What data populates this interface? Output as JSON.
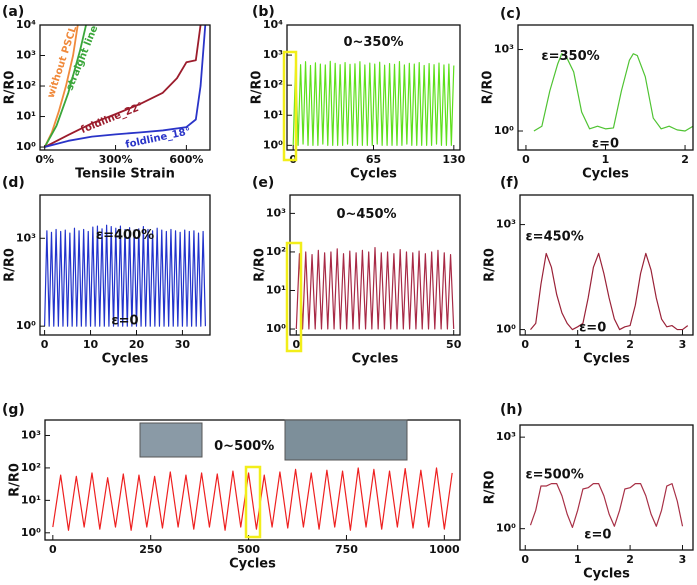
{
  "chart_data": [
    {
      "type": "line",
      "label": "(a)",
      "xlabel": "Tensile Strain",
      "ylabel": "R/R0",
      "log_y": true,
      "xlim": [
        -20,
        700
      ],
      "ylim": [
        0.8,
        10000
      ],
      "xticks": [
        {
          "value": 0,
          "label": "0%"
        },
        {
          "value": 300,
          "label": "300%"
        },
        {
          "value": 600,
          "label": "600%"
        }
      ],
      "yticks": [
        {
          "value": 1,
          "label": "10⁰"
        },
        {
          "value": 10,
          "label": "10¹"
        },
        {
          "value": 100,
          "label": "10²"
        },
        {
          "value": 1000,
          "label": "10³"
        },
        {
          "value": 10000,
          "label": "10⁴"
        }
      ],
      "annotations": [],
      "series": [
        {
          "name": "without PSCL",
          "color": "#f08a3c",
          "x": [
            0,
            30,
            60,
            90,
            120,
            140
          ],
          "values": [
            1,
            3,
            15,
            100,
            1000,
            10000
          ]
        },
        {
          "name": "straight line",
          "color": "#3aa63a",
          "x": [
            0,
            50,
            100,
            150,
            175
          ],
          "values": [
            1,
            5,
            60,
            1500,
            10000
          ]
        },
        {
          "name": "foldline_22°",
          "color": "#9b1c2c",
          "x": [
            0,
            100,
            200,
            300,
            400,
            500,
            560,
            600,
            640,
            660
          ],
          "values": [
            1,
            2.5,
            6,
            12,
            25,
            60,
            180,
            600,
            700,
            10000
          ]
        },
        {
          "name": "foldline_18°",
          "color": "#2a34c8",
          "x": [
            0,
            100,
            200,
            300,
            400,
            500,
            600,
            640,
            660,
            680
          ],
          "values": [
            1,
            1.6,
            2.2,
            2.6,
            3,
            3.5,
            4.5,
            8,
            100,
            10000
          ]
        }
      ]
    },
    {
      "type": "line",
      "label": "(b)",
      "xlabel": "Cycles",
      "ylabel": "R/R0",
      "log_y": true,
      "xlim": [
        -5,
        135
      ],
      "ylim": [
        0.7,
        10000
      ],
      "xticks": [
        0,
        65,
        130
      ],
      "yticks": [
        {
          "value": 1,
          "label": "10⁰"
        },
        {
          "value": 10,
          "label": "10¹"
        },
        {
          "value": 100,
          "label": "10²"
        },
        {
          "value": 1000,
          "label": "10³"
        },
        {
          "value": 10000,
          "label": "10⁴"
        }
      ],
      "annotations": [
        "0~350%"
      ],
      "series": [
        {
          "color": "#5ee01c",
          "x": [
            0,
            2,
            4,
            6,
            8,
            10,
            12,
            14,
            16,
            18,
            20,
            22,
            24,
            26,
            28,
            30,
            32,
            34,
            36,
            38,
            40,
            42,
            44,
            46,
            48,
            50,
            52,
            54,
            56,
            58,
            60,
            62,
            64,
            66,
            68,
            70,
            72,
            74,
            76,
            78,
            80,
            82,
            84,
            86,
            88,
            90,
            92,
            94,
            96,
            98,
            100,
            102,
            104,
            106,
            108,
            110,
            112,
            114,
            116,
            118,
            120,
            122,
            124,
            126,
            128,
            130
          ],
          "values": [
            1,
            520,
            1,
            480,
            1.1,
            600,
            1,
            450,
            1,
            550,
            1,
            500,
            1.1,
            470,
            1,
            620,
            1,
            530,
            1,
            480,
            1,
            560,
            1.1,
            490,
            1,
            510,
            1,
            600,
            1,
            470,
            1,
            540,
            1,
            500,
            1.1,
            580,
            1,
            460,
            1,
            520,
            1,
            490,
            1,
            610,
            1,
            470,
            1.1,
            530,
            1,
            500,
            1,
            560,
            1,
            450,
            1,
            520,
            1,
            480,
            1.1,
            540,
            1,
            470,
            1,
            500,
            1,
            450
          ]
        }
      ]
    },
    {
      "type": "line",
      "label": "(c)",
      "xlabel": "Cycles",
      "ylabel": "R/R0",
      "log_y": true,
      "xlim": [
        -0.1,
        2.1
      ],
      "ylim": [
        0.2,
        8000
      ],
      "xticks": [
        0,
        1,
        2
      ],
      "yticks": [
        {
          "value": 1,
          "label": "10⁰"
        },
        {
          "value": 1000,
          "label": "10³"
        }
      ],
      "annotations": [
        "ε=350%",
        "ε=0"
      ],
      "series": [
        {
          "color": "#4fc332",
          "x": [
            0.1,
            0.2,
            0.3,
            0.4,
            0.45,
            0.5,
            0.6,
            0.7,
            0.8,
            0.9,
            1.0,
            1.1,
            1.2,
            1.3,
            1.35,
            1.4,
            1.5,
            1.6,
            1.7,
            1.8,
            1.9,
            2.0,
            2.1
          ],
          "values": [
            1,
            1.5,
            30,
            300,
            700,
            600,
            150,
            5,
            1.2,
            1.5,
            1.2,
            1.3,
            30,
            400,
            700,
            600,
            100,
            3,
            1.2,
            1.5,
            1.1,
            1,
            1.5
          ]
        }
      ]
    },
    {
      "type": "line",
      "label": "(d)",
      "xlabel": "Cycles",
      "ylabel": "R/R0",
      "log_y": true,
      "xlim": [
        -1,
        36
      ],
      "ylim": [
        0.5,
        30000
      ],
      "xticks": [
        0,
        10,
        20,
        30
      ],
      "yticks": [
        {
          "value": 1,
          "label": "10⁰"
        },
        {
          "value": 1000,
          "label": "10³"
        }
      ],
      "annotations": [
        "ε=400%",
        "ε=0"
      ],
      "series": [
        {
          "color": "#2233cc",
          "x": [
            0,
            0.5,
            1,
            1.5,
            2,
            2.5,
            3,
            3.5,
            4,
            4.5,
            5,
            5.5,
            6,
            6.5,
            7,
            7.5,
            8,
            8.5,
            9,
            9.5,
            10,
            10.5,
            11,
            11.5,
            12,
            12.5,
            13,
            13.5,
            14,
            14.5,
            15,
            15.5,
            16,
            16.5,
            17,
            17.5,
            18,
            18.5,
            19,
            19.5,
            20,
            20.5,
            21,
            21.5,
            22,
            22.5,
            23,
            23.5,
            24,
            24.5,
            25,
            25.5,
            26,
            26.5,
            27,
            27.5,
            28,
            28.5,
            29,
            29.5,
            30,
            30.5,
            31,
            31.5,
            32,
            32.5,
            33,
            33.5,
            34,
            34.5,
            35
          ],
          "values": [
            1,
            1800,
            1,
            1600,
            1,
            2000,
            1,
            1700,
            1,
            1900,
            1,
            1500,
            1,
            2200,
            1,
            1800,
            1,
            2000,
            1,
            1700,
            1,
            2400,
            1,
            2600,
            1,
            2100,
            1,
            2800,
            1,
            2500,
            1,
            2200,
            1,
            2600,
            1,
            2000,
            1,
            2300,
            1,
            1900,
            1,
            2100,
            1,
            2500,
            1,
            2000,
            1,
            1800,
            1,
            2200,
            1,
            1900,
            1,
            1700,
            1,
            2000,
            1,
            1800,
            1,
            1600,
            1,
            1900,
            1,
            1700,
            1,
            1800,
            1,
            1500,
            1,
            1700,
            1
          ]
        }
      ]
    },
    {
      "type": "line",
      "label": "(e)",
      "xlabel": "Cycles",
      "ylabel": "R/R0",
      "log_y": true,
      "xlim": [
        -2,
        52
      ],
      "ylim": [
        0.7,
        3000
      ],
      "xticks": [
        0,
        50
      ],
      "yticks": [
        {
          "value": 1,
          "label": "10⁰"
        },
        {
          "value": 10,
          "label": "10¹"
        },
        {
          "value": 100,
          "label": "10²"
        },
        {
          "value": 1000,
          "label": "10³"
        }
      ],
      "annotations": [
        "0~450%"
      ],
      "series": [
        {
          "color": "#a82a46",
          "x": [
            0,
            1,
            2,
            3,
            4,
            5,
            6,
            7,
            8,
            9,
            10,
            11,
            12,
            13,
            14,
            15,
            16,
            17,
            18,
            19,
            20,
            21,
            22,
            23,
            24,
            25,
            26,
            27,
            28,
            29,
            30,
            31,
            32,
            33,
            34,
            35,
            36,
            37,
            38,
            39,
            40,
            41,
            42,
            43,
            44,
            45,
            46,
            47,
            48,
            49,
            50
          ],
          "values": [
            1,
            90,
            1,
            100,
            1,
            85,
            1,
            110,
            1,
            95,
            1,
            100,
            1,
            120,
            1,
            90,
            1,
            105,
            1,
            95,
            1,
            110,
            1,
            100,
            1,
            130,
            1,
            95,
            1,
            100,
            1,
            90,
            1,
            115,
            1,
            100,
            1,
            95,
            1,
            105,
            1,
            90,
            1,
            100,
            1,
            110,
            1,
            95,
            1,
            85,
            1
          ]
        }
      ]
    },
    {
      "type": "line",
      "label": "(f)",
      "xlabel": "Cycles",
      "ylabel": "R/R0",
      "log_y": true,
      "xlim": [
        -0.1,
        3.2
      ],
      "ylim": [
        0.7,
        7000
      ],
      "xticks": [
        0,
        1,
        2,
        3
      ],
      "yticks": [
        {
          "value": 1,
          "label": "10⁰"
        },
        {
          "value": 1000,
          "label": "10³"
        }
      ],
      "annotations": [
        "ε=450%",
        "ε=0"
      ],
      "series": [
        {
          "color": "#9a2238",
          "x": [
            0.1,
            0.2,
            0.3,
            0.4,
            0.5,
            0.6,
            0.7,
            0.8,
            0.9,
            1.0,
            1.1,
            1.2,
            1.3,
            1.4,
            1.5,
            1.6,
            1.7,
            1.8,
            1.9,
            2.0,
            2.1,
            2.2,
            2.3,
            2.4,
            2.5,
            2.6,
            2.7,
            2.8,
            2.9,
            3.0,
            3.1
          ],
          "values": [
            1,
            1.5,
            20,
            150,
            60,
            10,
            3,
            1.5,
            1,
            1.2,
            1.5,
            8,
            60,
            150,
            40,
            8,
            2,
            1,
            1.2,
            1.3,
            5,
            40,
            150,
            50,
            8,
            2,
            1.2,
            1.3,
            1,
            1,
            1.3
          ]
        }
      ]
    },
    {
      "type": "line",
      "label": "(g)",
      "xlabel": "Cycles",
      "ylabel": "R/R0",
      "log_y": true,
      "xlim": [
        -20,
        1040
      ],
      "ylim": [
        0.6,
        3000
      ],
      "xticks": [
        0,
        250,
        500,
        750,
        1000
      ],
      "yticks": [
        {
          "value": 1,
          "label": "10⁰"
        },
        {
          "value": 10,
          "label": "10¹"
        },
        {
          "value": 100,
          "label": "10²"
        },
        {
          "value": 1000,
          "label": "10³"
        }
      ],
      "annotations": [
        "0~500%"
      ],
      "series": [
        {
          "color": "#ee2020",
          "x": [
            0,
            20,
            40,
            60,
            80,
            100,
            120,
            140,
            160,
            180,
            200,
            220,
            240,
            260,
            280,
            300,
            320,
            340,
            360,
            380,
            400,
            420,
            440,
            460,
            480,
            500,
            520,
            540,
            560,
            580,
            600,
            620,
            640,
            660,
            680,
            700,
            720,
            740,
            760,
            780,
            800,
            820,
            840,
            860,
            880,
            900,
            920,
            940,
            960,
            980,
            1000,
            1020
          ],
          "values": [
            1.5,
            60,
            1.2,
            55,
            1.5,
            70,
            1.3,
            50,
            1.5,
            65,
            1.2,
            60,
            1.5,
            55,
            1.4,
            75,
            1.5,
            60,
            1.3,
            70,
            1.5,
            65,
            1.2,
            80,
            1.5,
            70,
            1.3,
            60,
            1.5,
            75,
            1.4,
            90,
            1.5,
            70,
            1.3,
            85,
            1.5,
            80,
            1.2,
            100,
            1.5,
            90,
            1.3,
            80,
            1.5,
            95,
            1.4,
            85,
            1.5,
            100,
            1.3,
            70
          ]
        }
      ]
    },
    {
      "type": "line",
      "label": "(h)",
      "xlabel": "Cycles",
      "ylabel": "R/R0",
      "log_y": true,
      "xlim": [
        -0.1,
        3.2
      ],
      "ylim": [
        0.2,
        2500
      ],
      "xticks": [
        0,
        1,
        2,
        3
      ],
      "yticks": [
        {
          "value": 1,
          "label": "10⁰"
        },
        {
          "value": 1000,
          "label": "10³"
        }
      ],
      "annotations": [
        "ε=500%",
        "ε=0"
      ],
      "series": [
        {
          "color": "#a83046",
          "x": [
            0.1,
            0.2,
            0.3,
            0.4,
            0.5,
            0.6,
            0.7,
            0.8,
            0.9,
            1.0,
            1.1,
            1.2,
            1.3,
            1.4,
            1.5,
            1.6,
            1.7,
            1.8,
            1.9,
            2.0,
            2.1,
            2.2,
            2.3,
            2.4,
            2.5,
            2.6,
            2.7,
            2.8,
            2.9,
            3.0
          ],
          "values": [
            1.3,
            4,
            25,
            25,
            30,
            30,
            12,
            3,
            1.1,
            4,
            20,
            22,
            30,
            30,
            12,
            3,
            1.2,
            4,
            20,
            22,
            30,
            30,
            12,
            3,
            1.2,
            4,
            25,
            30,
            8,
            1.2
          ]
        }
      ]
    }
  ]
}
